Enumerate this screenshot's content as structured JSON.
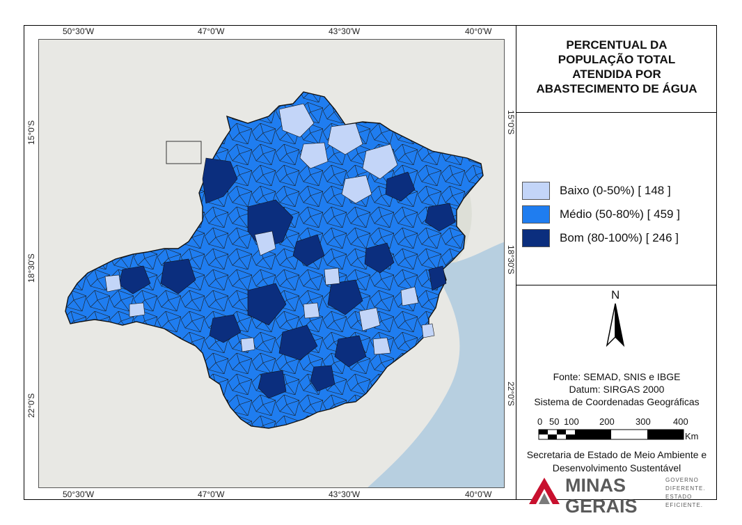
{
  "map": {
    "top_ticks": [
      "50°30'W",
      "47°0'W",
      "43°30'W",
      "40°0'W"
    ],
    "bottom_ticks": [
      "50°30'W",
      "47°0'W",
      "43°30'W",
      "40°0'W"
    ],
    "left_ticks": [
      "15°0'S",
      "18°30'S",
      "22°0'S"
    ],
    "right_ticks": [
      "15°0'S",
      "18°30'S",
      "22°0'S"
    ],
    "colors": {
      "ocean": "#b7cfe0",
      "land": "#e8e8e4",
      "relief": "#d8dcd2",
      "low": "#c3d5f8",
      "medium": "#1f7df0",
      "good": "#0b2e7e",
      "border": "#1a1a1a"
    }
  },
  "title": {
    "line1": "PERCENTUAL DA",
    "line2": "POPULAÇÃO TOTAL",
    "line3": "ATENDIDA POR",
    "line4": "ABASTECIMENTO DE ÁGUA"
  },
  "legend": [
    {
      "label": "Baixo (0-50%) [ 148 ]",
      "color": "#c3d5f8"
    },
    {
      "label": "Médio (50-80%) [ 459 ]",
      "color": "#1f7df0"
    },
    {
      "label": "Bom (80-100%) [ 246 ]",
      "color": "#0b2e7e"
    }
  ],
  "north": {
    "letter": "N",
    "icon": "north-arrow-icon"
  },
  "credits": {
    "source": "Fonte: SEMAD, SNIS e IBGE",
    "datum": "Datum: SIRGAS 2000",
    "system": "Sistema de Coordenadas Geográficas"
  },
  "scale": {
    "ticks": [
      "0",
      "50",
      "100",
      "200",
      "300",
      "400"
    ],
    "unit": "Km"
  },
  "agency": {
    "line1": "Secretaria de Estado de Meio Ambiente e",
    "line2": "Desenvolvimento Sustentável"
  },
  "logo": {
    "name_line1": "MINAS",
    "name_line2": "GERAIS",
    "tag1": "GOVERNO",
    "tag2": "DIFERENTE.",
    "tag3": "ESTADO",
    "tag4": "EFICIENTE."
  }
}
